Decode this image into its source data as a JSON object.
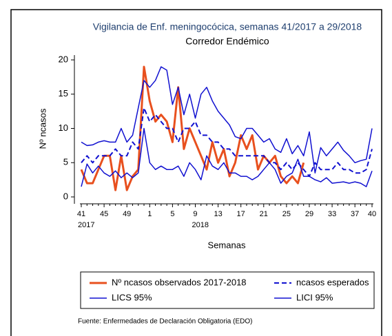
{
  "chart_data": {
    "type": "line",
    "title": "Vigilancia de Enf. meningocócica, semanas 41/2017 a 29/2018",
    "subtitle": "Corredor Endémico",
    "y_label": "Nº ncasos",
    "x_label": "Semanas",
    "source": "Fuente: Enfermedades de Declaración Obligatoria (EDO)",
    "categories": [
      "41",
      null,
      null,
      null,
      "45",
      null,
      null,
      null,
      "49",
      null,
      null,
      null,
      "1",
      null,
      null,
      null,
      "5",
      null,
      null,
      null,
      "9",
      null,
      null,
      null,
      "13",
      null,
      null,
      null,
      "17",
      null,
      null,
      null,
      "21",
      null,
      null,
      null,
      "25",
      null,
      null,
      null,
      "29",
      null,
      null,
      null,
      "33",
      null,
      null,
      null,
      "37",
      null,
      null,
      "40"
    ],
    "years": [
      "2017",
      null,
      null,
      null,
      null,
      null,
      null,
      null,
      null,
      null,
      null,
      null,
      null,
      null,
      null,
      null,
      null,
      null,
      null,
      null,
      "2018",
      null,
      null,
      null,
      null,
      null,
      null,
      null,
      null,
      null,
      null,
      null,
      null,
      null,
      null,
      null,
      null,
      null,
      null,
      null,
      null,
      null,
      null,
      null,
      null,
      null,
      null,
      null,
      null,
      null,
      null,
      null
    ],
    "ylim": [
      0,
      20
    ],
    "yticks": [
      0,
      5,
      10,
      15,
      20
    ],
    "series": [
      {
        "name": "Nº ncasos observados 2017-2018",
        "color": "#e8501e",
        "dash": false,
        "width": 3,
        "values": [
          4,
          2,
          2,
          4,
          6,
          6,
          1,
          6,
          1,
          3,
          4,
          19,
          14,
          11,
          12,
          11,
          8,
          16,
          7,
          10,
          8,
          6,
          4,
          8,
          5,
          7,
          3,
          5,
          9,
          7,
          9,
          4,
          6,
          5,
          6,
          3,
          2,
          3,
          2,
          5,
          null,
          null,
          null,
          null,
          null,
          null,
          null,
          null,
          null,
          null,
          null,
          null
        ]
      },
      {
        "name": "ncasos esperados",
        "color": "#1010d0",
        "dash": true,
        "width": 2,
        "values": [
          5,
          6,
          5,
          6,
          6,
          6,
          7,
          6,
          6,
          8,
          7,
          13,
          11,
          12,
          11,
          10,
          10,
          8,
          10,
          10,
          11,
          9,
          9,
          8,
          8,
          7,
          7,
          6,
          6,
          6,
          6,
          6,
          6,
          5,
          5,
          4,
          5,
          4,
          5,
          4,
          3,
          5,
          4,
          4,
          4,
          5,
          4,
          4,
          3.5,
          3.5,
          4,
          7
        ]
      },
      {
        "name": "LICS 95%",
        "color": "#1010d0",
        "dash": false,
        "width": 1.5,
        "values": [
          8,
          7.5,
          7.6,
          8,
          8.2,
          8,
          8,
          10,
          8,
          9,
          13,
          17,
          16,
          17,
          19,
          18.5,
          13.5,
          16,
          12,
          15,
          11.5,
          15,
          16,
          14,
          12.5,
          11.5,
          10.5,
          8.8,
          8.5,
          10,
          10,
          9,
          8,
          8.5,
          7,
          6.5,
          8.5,
          6.3,
          7.5,
          6,
          9.5,
          3.5,
          7.2,
          6,
          7,
          8,
          6.8,
          6,
          5,
          5.3,
          5.5,
          10
        ]
      },
      {
        "name": "LICI 95%",
        "color": "#1010d0",
        "dash": false,
        "width": 1.5,
        "values": [
          1.5,
          4.8,
          3.5,
          4.5,
          3.5,
          3,
          3.8,
          2.8,
          3.5,
          2.8,
          3.5,
          10,
          5,
          4,
          4.5,
          4,
          4,
          4.5,
          3,
          5,
          4,
          2.5,
          6,
          4.5,
          4,
          5,
          3.5,
          3.5,
          3,
          3,
          2.5,
          3,
          4,
          5,
          4,
          2,
          3,
          3.5,
          5.5,
          3,
          3,
          2.5,
          2.2,
          2.8,
          2,
          2.1,
          2.2,
          2,
          2.2,
          2,
          1.5,
          3.8
        ]
      }
    ]
  }
}
